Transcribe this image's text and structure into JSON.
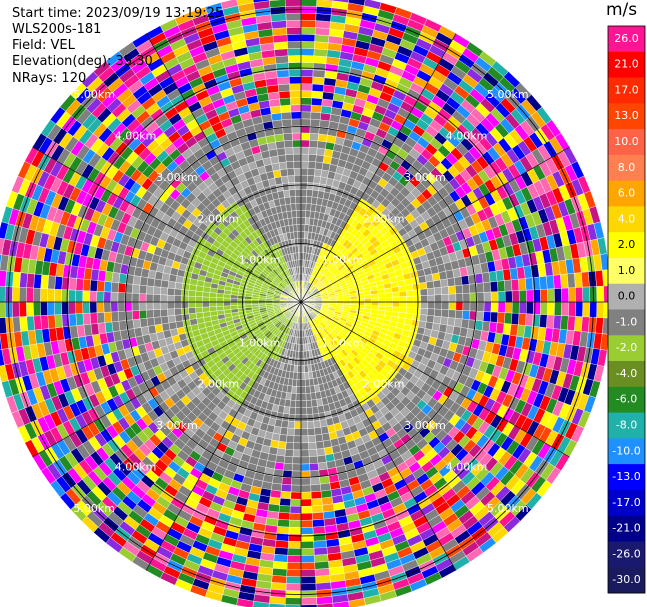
{
  "header": {
    "start_time": "Start time: 2023/09/19 13:19:25",
    "station": "WLS200s-181",
    "field": "Field: VEL",
    "elevation": "Elevation(deg): 35.30",
    "nrays": "NRays: 120"
  },
  "chart_data": {
    "type": "heatmap",
    "projection": "polar-ppi",
    "field": "VEL",
    "unit": "m/s",
    "nrays": 120,
    "range_rings_km": [
      1,
      2,
      3,
      4,
      5
    ],
    "ring_labels": {
      "1": "1.00km",
      "2": "2.00km",
      "3": "3.00km",
      "4": "4.00km",
      "5": "5.00km"
    },
    "max_range_km": 5.3,
    "colorbar": {
      "ticks": [
        "26.0",
        "21.0",
        "17.0",
        "13.0",
        "10.0",
        "8.0",
        "6.0",
        "4.0",
        "2.0",
        "1.0",
        "0.0",
        "-1.0",
        "-2.0",
        "-4.0",
        "-6.0",
        "-8.0",
        "-10.0",
        "-13.0",
        "-17.0",
        "-21.0",
        "-26.0",
        "-30.0"
      ],
      "colors": [
        "#ff1493",
        "#ff0000",
        "#ff2a00",
        "#ff4500",
        "#ff6347",
        "#ff7f50",
        "#ffa500",
        "#ffd700",
        "#ffff00",
        "#ffff66",
        "#b0b0b0",
        "#808080",
        "#9acd32",
        "#6b8e23",
        "#228b22",
        "#20b2aa",
        "#1e90ff",
        "#0000ff",
        "#0000cd",
        "#00008b",
        "#191970",
        "#1a1a5e"
      ]
    },
    "noise_palette": [
      "#ff1493",
      "#ff0000",
      "#ff4500",
      "#ffa500",
      "#ffd700",
      "#ffff00",
      "#9acd32",
      "#228b22",
      "#20b2aa",
      "#1e90ff",
      "#0000ff",
      "#00008b",
      "#8a2be2",
      "#ff00ff",
      "#c71585",
      "#ff69b4",
      "#808080"
    ]
  }
}
